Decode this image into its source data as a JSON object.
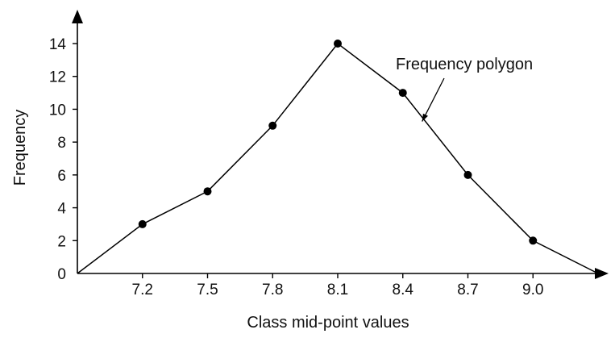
{
  "chart_data": {
    "type": "line",
    "xlabel": "Class mid-point values",
    "ylabel": "Frequency",
    "x_tick_labels": [
      "7.2",
      "7.5",
      "7.8",
      "8.1",
      "8.4",
      "8.7",
      "9.0"
    ],
    "y_tick_labels": [
      "0",
      "2",
      "4",
      "6",
      "8",
      "10",
      "12",
      "14"
    ],
    "xlim": [
      6.9,
      9.3
    ],
    "ylim": [
      0,
      14
    ],
    "grid": false,
    "series": [
      {
        "x": [
          6.9,
          7.2,
          7.5,
          7.8,
          8.1,
          8.4,
          8.7,
          9.0,
          9.3
        ],
        "y": [
          0,
          3,
          5,
          9,
          14,
          11,
          6,
          2,
          0
        ],
        "markers_at": [
          7.2,
          7.5,
          7.8,
          8.1,
          8.4,
          8.7,
          9.0
        ],
        "color": "#000000"
      }
    ],
    "annotations": [
      {
        "text": "Frequency polygon",
        "points_to_x": 8.5,
        "points_to_y": 9.5
      }
    ]
  }
}
